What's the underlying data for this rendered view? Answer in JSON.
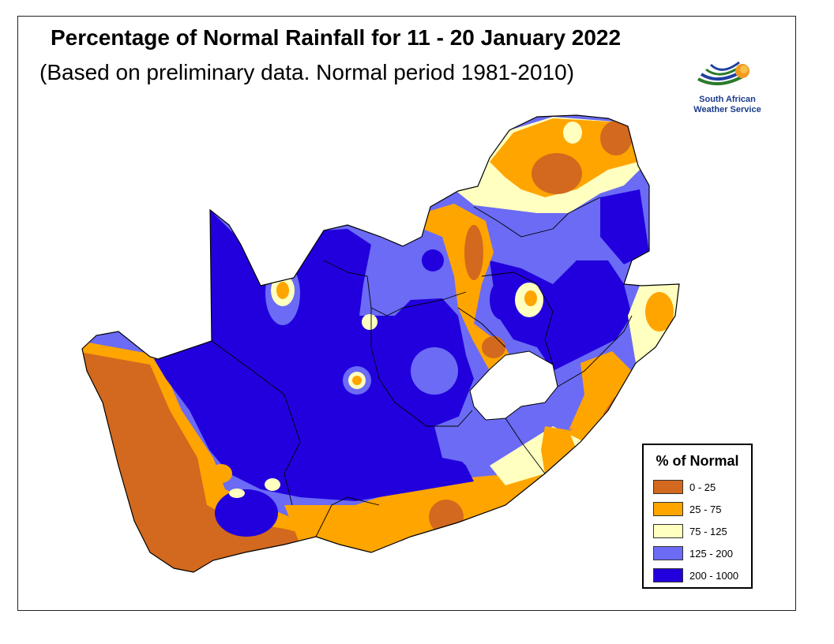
{
  "title": "Percentage of Normal Rainfall for 11 - 20 January 2022",
  "subtitle": "(Based on preliminary data. Normal period 1981-2010)",
  "logo": {
    "line1": "South African",
    "line2": "Weather Service"
  },
  "legend": {
    "title": "% of Normal",
    "items": [
      {
        "label": "0 - 25",
        "color": "#d2691e"
      },
      {
        "label": "25 - 75",
        "color": "#ffa500"
      },
      {
        "label": "75 - 125",
        "color": "#ffffc0"
      },
      {
        "label": "125 - 200",
        "color": "#6b6bf5"
      },
      {
        "label": "200 - 1000",
        "color": "#2200dd"
      }
    ]
  },
  "colors": {
    "c0_25": "#d2691e",
    "c25_75": "#ffa500",
    "c75_125": "#ffffc0",
    "c125_200": "#6b6bf5",
    "c200_1000": "#2200dd",
    "lesotho": "#ffffff",
    "borders": "#000000"
  }
}
